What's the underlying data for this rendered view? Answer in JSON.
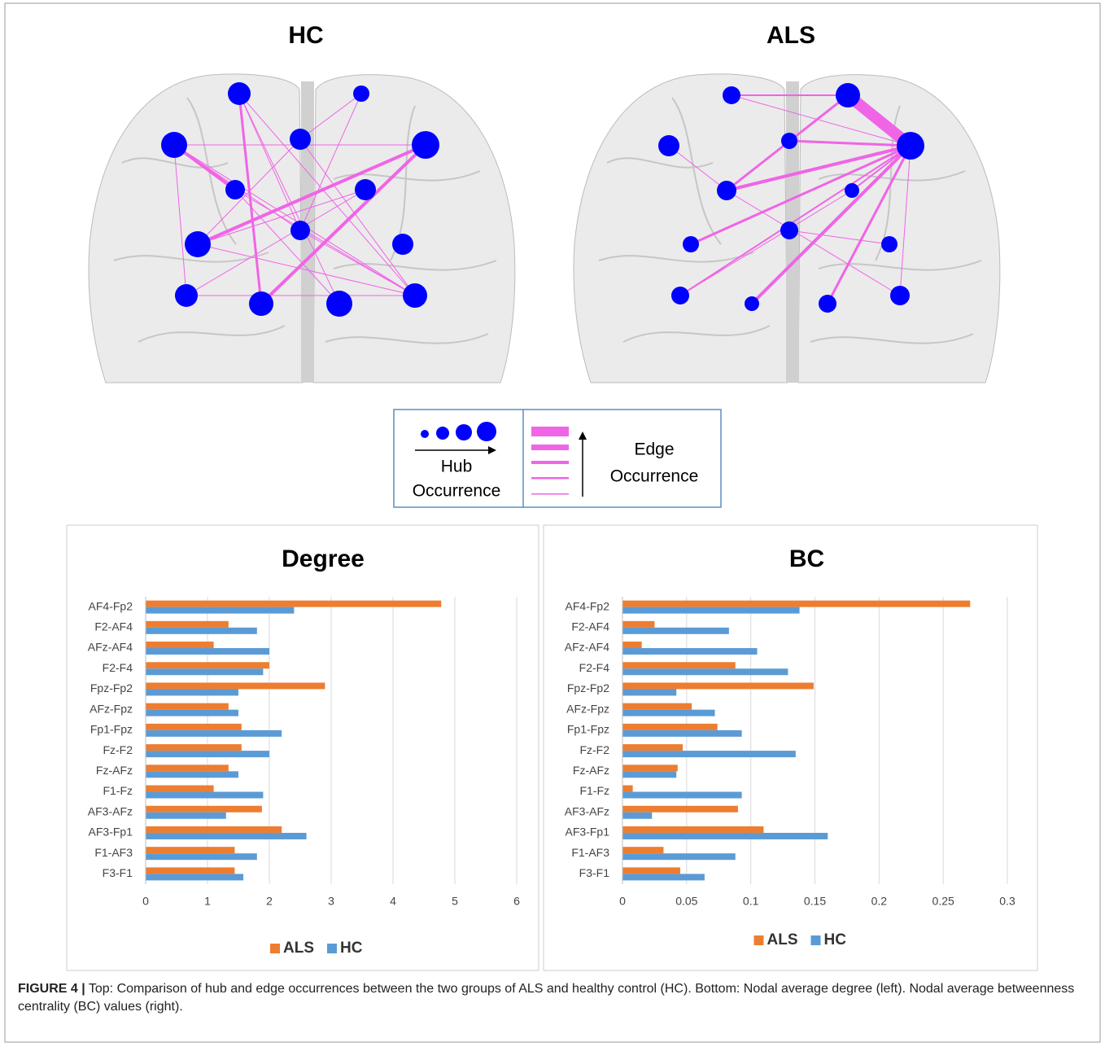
{
  "panels": {
    "hc_title": "HC",
    "als_title": "ALS"
  },
  "legend_box": {
    "hub_1": "Hub",
    "hub_2": "Occurrence",
    "edge_1": "Edge",
    "edge_2": "Occurrence"
  },
  "caption": {
    "label": "FIGURE 4 |",
    "text": "Top: Comparison of hub and edge occurrences between the two groups of ALS and healthy control (HC). Bottom: Nodal average degree (left). Nodal average betweenness centrality (BC) values (right)."
  },
  "chart_data": [
    {
      "type": "bar",
      "orientation": "horizontal",
      "title": "Degree",
      "categories": [
        "AF4-Fp2",
        "F2-AF4",
        "AFz-AF4",
        "F2-F4",
        "Fpz-Fp2",
        "AFz-Fpz",
        "Fp1-Fpz",
        "Fz-F2",
        "Fz-AFz",
        "F1-Fz",
        "AF3-AFz",
        "AF3-Fp1",
        "F1-AF3",
        "F3-F1"
      ],
      "series": [
        {
          "name": "ALS",
          "color": "#ed7d31",
          "values": [
            4.78,
            1.34,
            1.1,
            2.0,
            2.9,
            1.34,
            1.55,
            1.55,
            1.34,
            1.1,
            1.88,
            2.2,
            1.44,
            1.44
          ]
        },
        {
          "name": "HC",
          "color": "#5b9bd5",
          "values": [
            2.4,
            1.8,
            2.0,
            1.9,
            1.5,
            1.5,
            2.2,
            2.0,
            1.5,
            1.9,
            1.3,
            2.6,
            1.8,
            1.58
          ]
        }
      ],
      "xlim": [
        0,
        6
      ],
      "xticks": [
        0,
        1,
        2,
        3,
        4,
        5,
        6
      ],
      "grid": true,
      "legend": "bottom"
    },
    {
      "type": "bar",
      "orientation": "horizontal",
      "title": "BC",
      "categories": [
        "AF4-Fp2",
        "F2-AF4",
        "AFz-AF4",
        "F2-F4",
        "Fpz-Fp2",
        "AFz-Fpz",
        "Fp1-Fpz",
        "Fz-F2",
        "Fz-AFz",
        "F1-Fz",
        "AF3-AFz",
        "AF3-Fp1",
        "F1-AF3",
        "F3-F1"
      ],
      "series": [
        {
          "name": "ALS",
          "color": "#ed7d31",
          "values": [
            0.271,
            0.025,
            0.015,
            0.088,
            0.149,
            0.054,
            0.074,
            0.047,
            0.043,
            0.008,
            0.09,
            0.11,
            0.032,
            0.045
          ]
        },
        {
          "name": "HC",
          "color": "#5b9bd5",
          "values": [
            0.138,
            0.083,
            0.105,
            0.129,
            0.042,
            0.072,
            0.093,
            0.135,
            0.042,
            0.093,
            0.023,
            0.16,
            0.088,
            0.064
          ]
        }
      ],
      "xlim": [
        0,
        0.3
      ],
      "xticks": [
        0,
        0.05,
        0.1,
        0.15,
        0.2,
        0.25,
        0.3
      ],
      "grid": true,
      "legend": "bottom"
    }
  ]
}
